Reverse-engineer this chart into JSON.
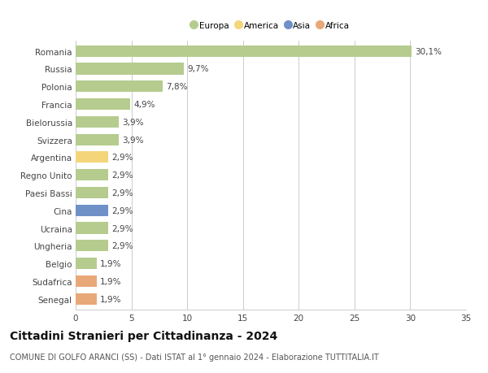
{
  "categories": [
    "Romania",
    "Russia",
    "Polonia",
    "Francia",
    "Bielorussia",
    "Svizzera",
    "Argentina",
    "Regno Unito",
    "Paesi Bassi",
    "Cina",
    "Ucraina",
    "Ungheria",
    "Belgio",
    "Sudafrica",
    "Senegal"
  ],
  "values": [
    30.1,
    9.7,
    7.8,
    4.9,
    3.9,
    3.9,
    2.9,
    2.9,
    2.9,
    2.9,
    2.9,
    2.9,
    1.9,
    1.9,
    1.9
  ],
  "labels": [
    "30,1%",
    "9,7%",
    "7,8%",
    "4,9%",
    "3,9%",
    "3,9%",
    "2,9%",
    "2,9%",
    "2,9%",
    "2,9%",
    "2,9%",
    "2,9%",
    "1,9%",
    "1,9%",
    "1,9%"
  ],
  "colors": [
    "#b5cc8e",
    "#b5cc8e",
    "#b5cc8e",
    "#b5cc8e",
    "#b5cc8e",
    "#b5cc8e",
    "#f5d57a",
    "#b5cc8e",
    "#b5cc8e",
    "#7090c8",
    "#b5cc8e",
    "#b5cc8e",
    "#b5cc8e",
    "#e8a878",
    "#e8a878"
  ],
  "legend_labels": [
    "Europa",
    "America",
    "Asia",
    "Africa"
  ],
  "legend_colors": [
    "#b5cc8e",
    "#f5d57a",
    "#7090c8",
    "#e8a878"
  ],
  "title": "Cittadini Stranieri per Cittadinanza - 2024",
  "subtitle": "COMUNE DI GOLFO ARANCI (SS) - Dati ISTAT al 1° gennaio 2024 - Elaborazione TUTTITALIA.IT",
  "xlim": [
    0,
    35
  ],
  "xticks": [
    0,
    5,
    10,
    15,
    20,
    25,
    30,
    35
  ],
  "bg_color": "#ffffff",
  "grid_color": "#cccccc",
  "bar_height": 0.65,
  "label_fontsize": 7.5,
  "tick_fontsize": 7.5,
  "title_fontsize": 10,
  "subtitle_fontsize": 7
}
